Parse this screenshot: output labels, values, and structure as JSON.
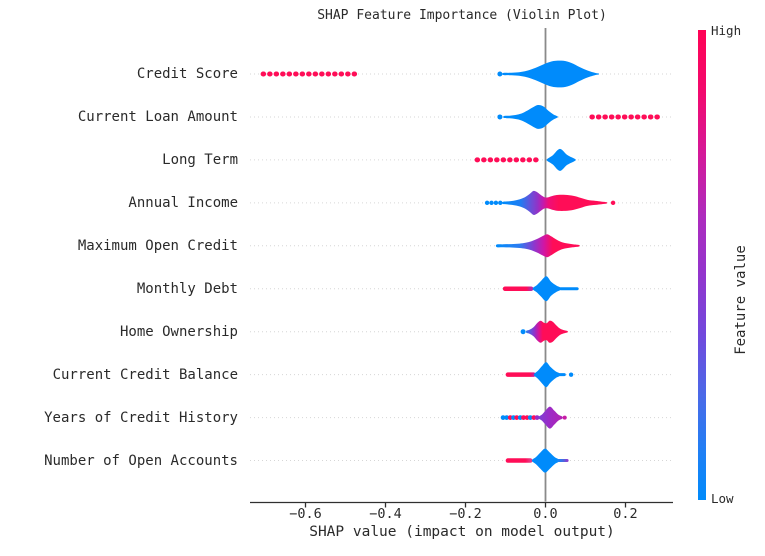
{
  "chart_data": {
    "type": "violin",
    "title": "SHAP Feature Importance (Violin Plot)",
    "xlabel": "SHAP value (impact on model output)",
    "x_axis": {
      "tick_values": [
        -0.6,
        -0.4,
        -0.2,
        0.0,
        0.2
      ],
      "tick_labels": [
        "−0.6",
        "−0.4",
        "−0.2",
        "0.0",
        "0.2"
      ],
      "range": [
        -0.74,
        0.32
      ],
      "grid": "dotted horizontal per feature row"
    },
    "colors": {
      "low": "#008bfb",
      "mid": "#9b2bc7",
      "high": "#ff0d57",
      "zero_line": "#8a8a8a",
      "grid": "#d6d6d6",
      "axis": "#303030",
      "text": "#2a2a2a",
      "background": "#ffffff"
    },
    "colorbar": {
      "title": "Feature value",
      "high_label": "High",
      "low_label": "Low",
      "gradient": [
        [
          0,
          "#ff0355"
        ],
        [
          0.13,
          "#f30a6d"
        ],
        [
          0.27,
          "#d31a9b"
        ],
        [
          0.4,
          "#ad2cbe"
        ],
        [
          0.52,
          "#9335cd"
        ],
        [
          0.65,
          "#7149dd"
        ],
        [
          0.78,
          "#4a6ae8"
        ],
        [
          0.9,
          "#1f80f5"
        ],
        [
          1,
          "#008bfb"
        ]
      ]
    },
    "features": [
      {
        "name": "Credit Score",
        "marks": [
          {
            "kind": "dotline",
            "x1": -0.706,
            "x2": -0.476,
            "h": 5,
            "color": "high"
          },
          {
            "kind": "dot",
            "x": -0.114,
            "r": 2.5,
            "color": "low"
          },
          {
            "kind": "violin",
            "fill": "low",
            "profile": [
              [
                -0.106,
                1
              ],
              [
                -0.09,
                1.2
              ],
              [
                -0.07,
                1.6
              ],
              [
                -0.055,
                2.5
              ],
              [
                -0.04,
                4
              ],
              [
                -0.02,
                7
              ],
              [
                0.0,
                10.5
              ],
              [
                0.02,
                13
              ],
              [
                0.045,
                13.2
              ],
              [
                0.065,
                11
              ],
              [
                0.085,
                7
              ],
              [
                0.105,
                3.5
              ],
              [
                0.125,
                1
              ],
              [
                0.133,
                0.5
              ]
            ]
          }
        ]
      },
      {
        "name": "Current Loan Amount",
        "marks": [
          {
            "kind": "dot",
            "x": -0.114,
            "r": 2.5,
            "color": "low"
          },
          {
            "kind": "violin",
            "fill": "low",
            "profile": [
              [
                -0.104,
                1
              ],
              [
                -0.09,
                1.3
              ],
              [
                -0.075,
                2
              ],
              [
                -0.06,
                3.5
              ],
              [
                -0.045,
                6.5
              ],
              [
                -0.03,
                10
              ],
              [
                -0.018,
                12
              ],
              [
                -0.005,
                10.5
              ],
              [
                0.008,
                6
              ],
              [
                0.02,
                2.5
              ],
              [
                0.03,
                0.6
              ]
            ]
          },
          {
            "kind": "dotline",
            "x1": 0.116,
            "x2": 0.281,
            "h": 5,
            "color": "high"
          }
        ]
      },
      {
        "name": "Long Term",
        "marks": [
          {
            "kind": "dotline",
            "x1": -0.171,
            "x2": -0.017,
            "h": 5,
            "color": "high"
          },
          {
            "kind": "violin",
            "fill": "low",
            "profile": [
              [
                0.004,
                0.8
              ],
              [
                0.018,
                4.5
              ],
              [
                0.036,
                11
              ],
              [
                0.054,
                5
              ],
              [
                0.074,
                0.8
              ]
            ]
          }
        ]
      },
      {
        "name": "Annual Income",
        "marks": [
          {
            "kind": "dots",
            "r": 2.2,
            "pts": [
              [
                -0.146,
                "low"
              ],
              [
                -0.135,
                "low"
              ],
              [
                -0.124,
                "low"
              ],
              [
                -0.113,
                "low"
              ]
            ]
          },
          {
            "kind": "violin",
            "stops": [
              [
                0,
                "#008bfb"
              ],
              [
                0.17,
                "#1f7df2"
              ],
              [
                0.27,
                "#6a4fd8"
              ],
              [
                0.33,
                "#8e35c9"
              ],
              [
                0.385,
                "#c01bb0"
              ],
              [
                0.44,
                "#ee0f7a"
              ],
              [
                0.54,
                "#ff0d57"
              ],
              [
                1,
                "#ff0d57"
              ]
            ],
            "profile": [
              [
                -0.107,
                1
              ],
              [
                -0.095,
                1.5
              ],
              [
                -0.08,
                2.2
              ],
              [
                -0.065,
                3.5
              ],
              [
                -0.05,
                6
              ],
              [
                -0.038,
                9.5
              ],
              [
                -0.03,
                12
              ],
              [
                -0.022,
                11
              ],
              [
                -0.012,
                8
              ],
              [
                -0.002,
                5.5
              ],
              [
                0.006,
                5.5
              ],
              [
                0.018,
                7
              ],
              [
                0.032,
                8
              ],
              [
                0.05,
                8
              ],
              [
                0.07,
                7
              ],
              [
                0.088,
                5
              ],
              [
                0.105,
                3
              ],
              [
                0.125,
                2
              ],
              [
                0.14,
                1.3
              ],
              [
                0.153,
                0.6
              ]
            ]
          },
          {
            "kind": "dot",
            "x": 0.169,
            "r": 2.2,
            "color": "high"
          }
        ]
      },
      {
        "name": "Maximum Open Credit",
        "marks": [
          {
            "kind": "violin",
            "stops": [
              [
                0,
                "#008bfb"
              ],
              [
                0.28,
                "#2e7cf0"
              ],
              [
                0.45,
                "#8a39cf"
              ],
              [
                0.57,
                "#cf16a6"
              ],
              [
                0.68,
                "#ff0d57"
              ],
              [
                1,
                "#ff0d57"
              ]
            ],
            "profile": [
              [
                -0.122,
                1.3
              ],
              [
                -0.105,
                1.5
              ],
              [
                -0.085,
                1.7
              ],
              [
                -0.065,
                2.2
              ],
              [
                -0.05,
                3
              ],
              [
                -0.035,
                4.5
              ],
              [
                -0.02,
                7
              ],
              [
                -0.008,
                9.5
              ],
              [
                0.004,
                11.5
              ],
              [
                0.014,
                9.5
              ],
              [
                0.026,
                6.5
              ],
              [
                0.038,
                4
              ],
              [
                0.052,
                2.5
              ],
              [
                0.068,
                1.5
              ],
              [
                0.084,
                0.7
              ]
            ]
          }
        ]
      },
      {
        "name": "Monthly Debt",
        "marks": [
          {
            "kind": "line",
            "x1": -0.101,
            "x2": -0.036,
            "h": 4.5,
            "stops": [
              [
                0,
                "#ff0d57"
              ],
              [
                0.82,
                "#ff0d57"
              ],
              [
                1,
                "#b62ba6"
              ]
            ]
          },
          {
            "kind": "violin",
            "fill": "low",
            "profile": [
              [
                -0.031,
                1
              ],
              [
                -0.022,
                3.5
              ],
              [
                -0.012,
                7.5
              ],
              [
                0.002,
                12.5
              ],
              [
                0.014,
                7
              ],
              [
                0.028,
                3
              ],
              [
                0.039,
                1
              ]
            ]
          },
          {
            "kind": "line",
            "x1": 0.039,
            "x2": 0.079,
            "h": 3,
            "color": "low"
          }
        ]
      },
      {
        "name": "Home Ownership",
        "marks": [
          {
            "kind": "dot",
            "x": -0.056,
            "r": 2.5,
            "color": "low"
          },
          {
            "kind": "violin",
            "stops": [
              [
                0,
                "#2f7aed"
              ],
              [
                0.1,
                "#5f55dd"
              ],
              [
                0.2,
                "#9031c9"
              ],
              [
                0.3,
                "#d4149b"
              ],
              [
                0.4,
                "#ff0d57"
              ],
              [
                1,
                "#ff0d57"
              ]
            ],
            "profile": [
              [
                -0.048,
                1
              ],
              [
                -0.04,
                2
              ],
              [
                -0.03,
                4.5
              ],
              [
                -0.02,
                9
              ],
              [
                -0.012,
                11
              ],
              [
                -0.004,
                9
              ],
              [
                0.003,
                8.5
              ],
              [
                0.01,
                11
              ],
              [
                0.018,
                10
              ],
              [
                0.028,
                6
              ],
              [
                0.037,
                3
              ],
              [
                0.047,
                1.5
              ],
              [
                0.055,
                0.7
              ]
            ]
          }
        ]
      },
      {
        "name": "Current Credit Balance",
        "marks": [
          {
            "kind": "line",
            "x1": -0.094,
            "x2": -0.03,
            "h": 4.5,
            "stops": [
              [
                0,
                "#ff0d57"
              ],
              [
                0.85,
                "#ff0d57"
              ],
              [
                1,
                "#cb1f93"
              ]
            ]
          },
          {
            "kind": "violin",
            "fill": "low",
            "profile": [
              [
                -0.028,
                1
              ],
              [
                -0.019,
                4
              ],
              [
                -0.008,
                9
              ],
              [
                0.002,
                12.5
              ],
              [
                0.012,
                8
              ],
              [
                0.025,
                3.5
              ],
              [
                0.036,
                1.2
              ]
            ]
          },
          {
            "kind": "line",
            "x1": 0.036,
            "x2": 0.047,
            "h": 3,
            "color": "low"
          },
          {
            "kind": "dot",
            "x": 0.064,
            "r": 2.2,
            "color": "low"
          }
        ]
      },
      {
        "name": "Years of Credit History",
        "marks": [
          {
            "kind": "dots",
            "r": 2.4,
            "pts": [
              [
                -0.106,
                "low"
              ],
              [
                -0.097,
                "low"
              ],
              [
                -0.088,
                "high"
              ],
              [
                -0.08,
                "low"
              ],
              [
                -0.072,
                "high"
              ],
              [
                -0.063,
                "low"
              ],
              [
                -0.055,
                "high"
              ],
              [
                -0.046,
                "high"
              ],
              [
                -0.038,
                "low"
              ],
              [
                -0.029,
                "high"
              ],
              [
                -0.021,
                "mid"
              ]
            ]
          },
          {
            "kind": "violin",
            "stops": [
              [
                0,
                "#7a41d4"
              ],
              [
                0.45,
                "#9b2bc7"
              ],
              [
                1,
                "#b322b4"
              ]
            ],
            "profile": [
              [
                -0.018,
                0.8
              ],
              [
                -0.009,
                3
              ],
              [
                0.0,
                7
              ],
              [
                0.011,
                11
              ],
              [
                0.022,
                7
              ],
              [
                0.032,
                3
              ],
              [
                0.042,
                1
              ]
            ]
          },
          {
            "kind": "dot",
            "x": 0.048,
            "r": 2,
            "color": "#c81ca5"
          }
        ]
      },
      {
        "name": "Number of Open Accounts",
        "marks": [
          {
            "kind": "line",
            "x1": -0.094,
            "x2": -0.038,
            "h": 4.5,
            "stops": [
              [
                0,
                "#ff0d57"
              ],
              [
                0.78,
                "#ff0d57"
              ],
              [
                1,
                "#e43a86"
              ]
            ]
          },
          {
            "kind": "violin",
            "fill": "low",
            "profile": [
              [
                -0.033,
                1
              ],
              [
                -0.024,
                3.5
              ],
              [
                -0.013,
                8
              ],
              [
                -0.001,
                12
              ],
              [
                0.011,
                8
              ],
              [
                0.023,
                3.5
              ],
              [
                0.033,
                1.2
              ]
            ]
          },
          {
            "kind": "line",
            "x1": 0.033,
            "x2": 0.054,
            "h": 3,
            "stops": [
              [
                0,
                "#1b84f5"
              ],
              [
                0.6,
                "#4f64dd"
              ],
              [
                1,
                "#8a3fd0"
              ]
            ]
          }
        ]
      }
    ]
  }
}
